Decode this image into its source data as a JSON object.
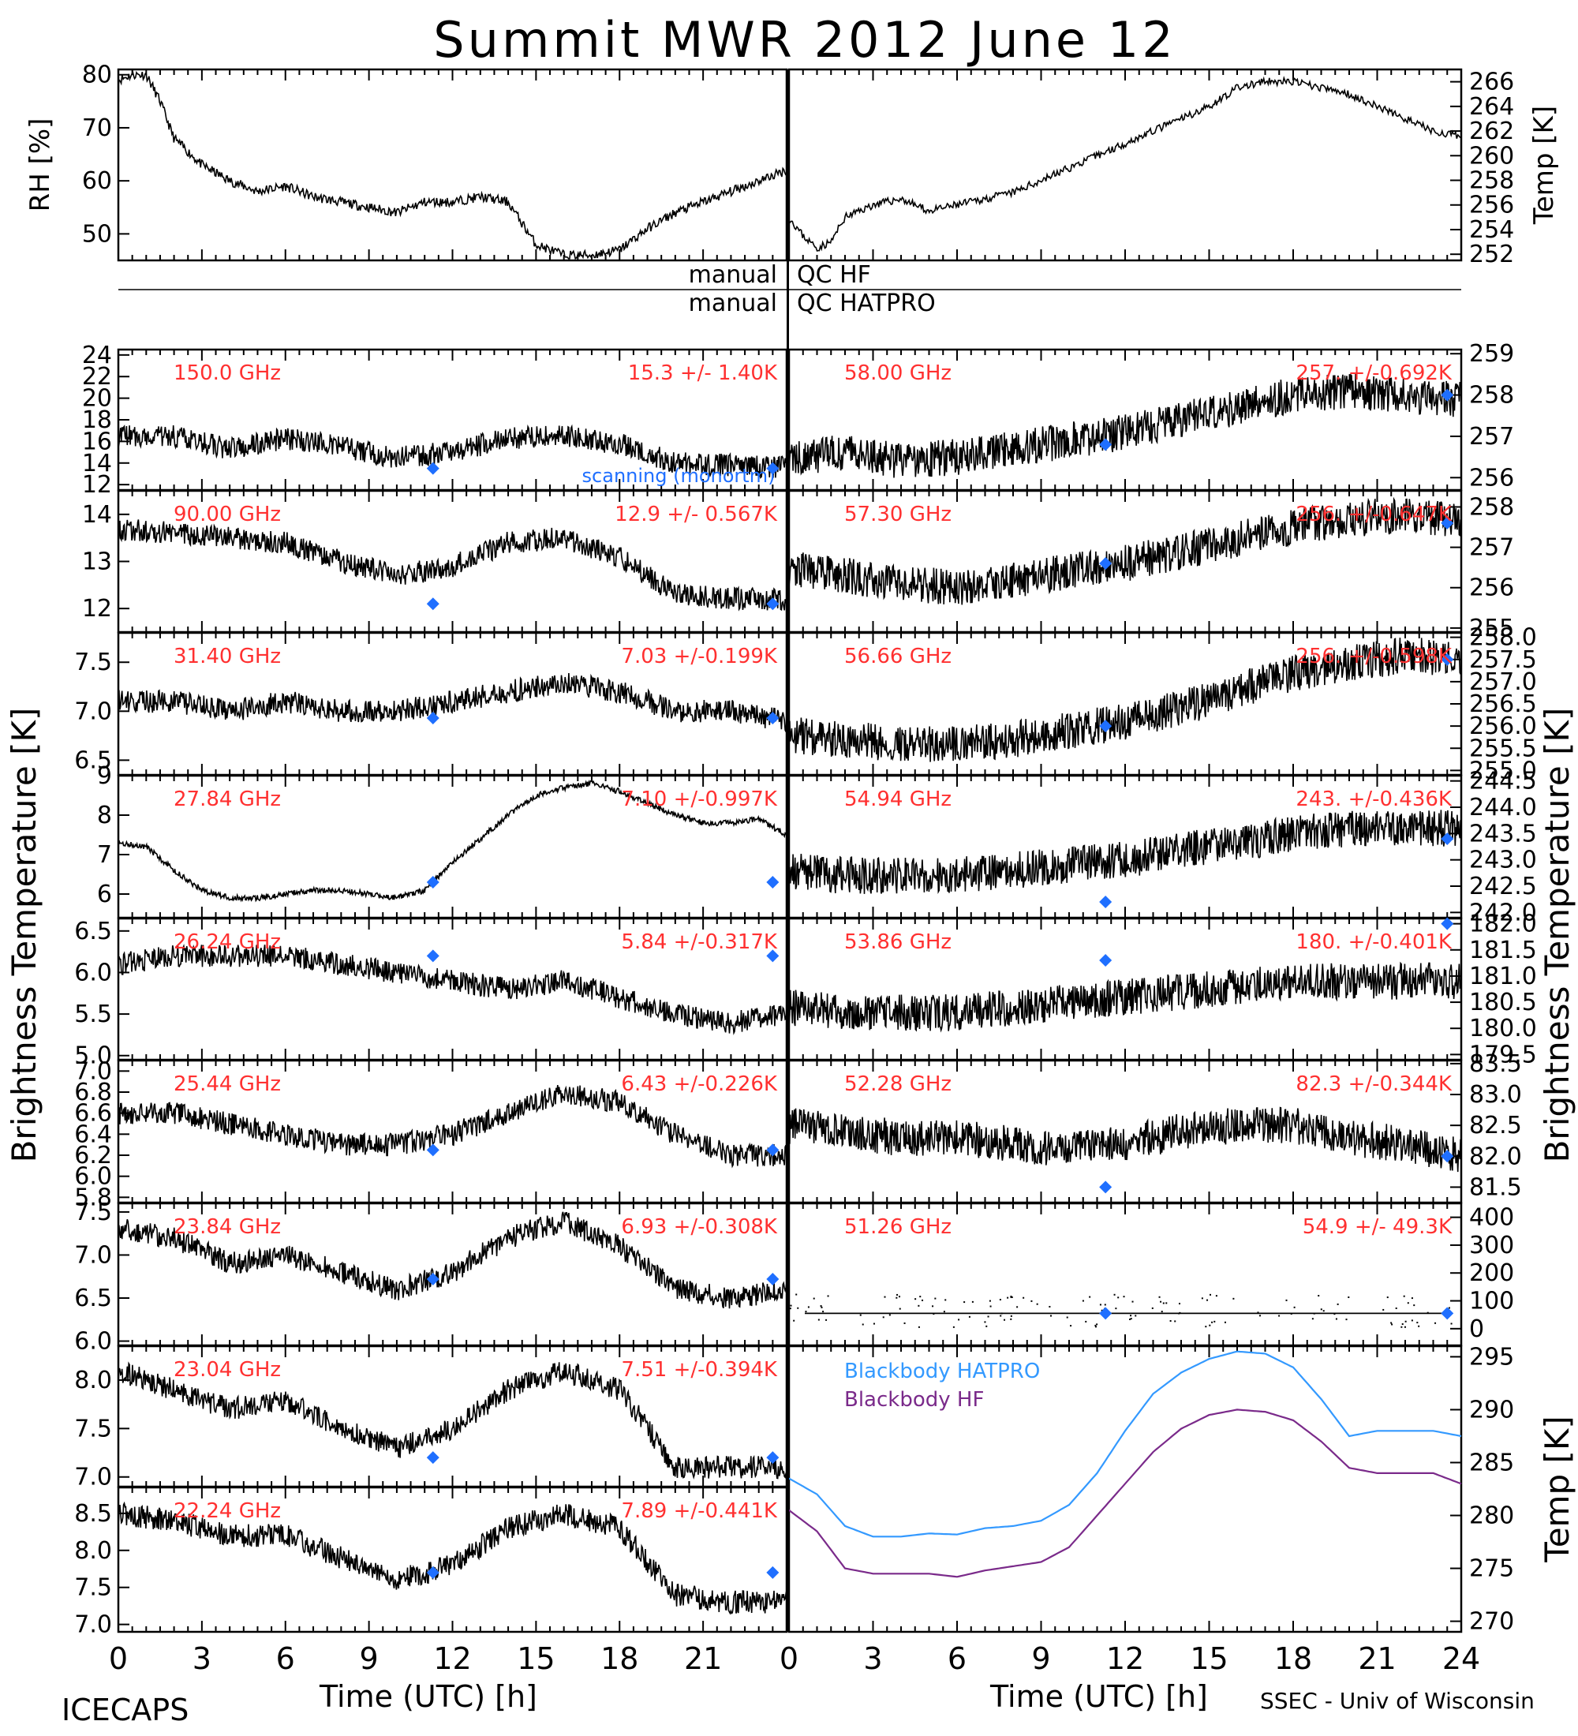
{
  "title": "Summit MWR 2012 June 12",
  "footer": {
    "left": "ICECAPS",
    "right": "SSEC - Univ of Wisconsin",
    "xlabel": "Time (UTC) [h]"
  },
  "qc_labels": {
    "manual": "manual",
    "hf": "QC HF",
    "hatpro": "QC HATPRO"
  },
  "left_axis_label": "Brightness Temperature [K]",
  "right_axis_label": "Brightness Temperature [K]",
  "x_ticks_left": [
    "0",
    "3",
    "6",
    "9",
    "12",
    "15",
    "18",
    "21"
  ],
  "x_ticks_right": [
    "0",
    "3",
    "6",
    "9",
    "12",
    "15",
    "18",
    "21",
    "24"
  ],
  "colors": {
    "trace": "#000000",
    "marker": "#1f6fff",
    "label": "#ff3030",
    "hatpro": "#3399ff",
    "hf": "#7a2a8a"
  },
  "chart_data": [
    {
      "type": "scatter",
      "panel": "rh",
      "ylabel": "RH [%]",
      "yticks": [
        "50",
        "60",
        "70",
        "80"
      ],
      "ylim": [
        45,
        81
      ],
      "x": [
        0,
        0.5,
        1,
        1.5,
        2,
        3,
        4,
        5,
        6,
        7,
        8,
        9,
        10,
        11,
        12,
        13,
        14,
        15,
        16,
        17,
        18,
        19,
        20,
        21,
        22,
        23,
        24
      ],
      "values": [
        79,
        80,
        80,
        75,
        68,
        63,
        60,
        58,
        59,
        57,
        56,
        55,
        54,
        56,
        56,
        57,
        56,
        48,
        46,
        46,
        47,
        51,
        54,
        56,
        58,
        60,
        62
      ]
    },
    {
      "type": "line",
      "panel": "temp",
      "ylabel": "Temp [K]",
      "yticks": [
        "252",
        "254",
        "256",
        "258",
        "260",
        "262",
        "264",
        "266"
      ],
      "ylim": [
        251.5,
        267
      ],
      "x": [
        0,
        0.5,
        1,
        1.5,
        2,
        3,
        4,
        5,
        6,
        7,
        8,
        9,
        10,
        11,
        12,
        13,
        14,
        15,
        16,
        17,
        18,
        19,
        20,
        21,
        22,
        23,
        24
      ],
      "values": [
        255,
        253.5,
        252.5,
        253,
        255,
        256,
        256.5,
        255.5,
        256,
        256.5,
        257,
        258,
        259,
        260,
        261,
        262,
        263,
        264,
        265.5,
        266,
        266,
        265.5,
        265,
        264,
        263,
        262,
        261.5
      ]
    },
    {
      "type": "scatter",
      "panel": "left-1",
      "freq": "150.0 GHz",
      "stat": "15.3 +/- 1.40K",
      "overlay": "scanning (monortm)",
      "yticks": [
        "12",
        "14",
        "16",
        "18",
        "20",
        "22",
        "24"
      ],
      "ylim": [
        11.5,
        24.5
      ],
      "x": [
        0,
        2,
        4,
        6,
        8,
        10,
        12,
        14,
        16,
        18,
        20,
        22,
        24
      ],
      "values": [
        16.5,
        16.5,
        15.3,
        16.3,
        15.5,
        14.5,
        15.0,
        16.3,
        16.5,
        15.8,
        14.0,
        13.8,
        13.6
      ],
      "markers": [
        [
          11.3,
          13.5
        ],
        [
          23.5,
          13.5
        ]
      ]
    },
    {
      "type": "scatter",
      "panel": "left-2",
      "freq": "90.00 GHz",
      "stat": "12.9 +/- 0.567K",
      "yticks": [
        "12",
        "13",
        "14"
      ],
      "ylim": [
        11.5,
        14.5
      ],
      "x": [
        0,
        2,
        4,
        6,
        8,
        10,
        12,
        14,
        16,
        18,
        20,
        22,
        24
      ],
      "values": [
        13.7,
        13.6,
        13.5,
        13.4,
        13.0,
        12.7,
        12.9,
        13.4,
        13.5,
        13.1,
        12.3,
        12.2,
        12.2
      ],
      "markers": [
        [
          11.3,
          12.1
        ],
        [
          23.5,
          12.1
        ]
      ]
    },
    {
      "type": "scatter",
      "panel": "left-3",
      "freq": "31.40 GHz",
      "stat": "7.03 +/-0.199K",
      "yticks": [
        "6.5",
        "7.0",
        "7.5"
      ],
      "ylim": [
        6.35,
        7.8
      ],
      "x": [
        0,
        2,
        4,
        6,
        8,
        10,
        12,
        14,
        16,
        18,
        20,
        22,
        24
      ],
      "values": [
        7.1,
        7.1,
        7.0,
        7.1,
        7.0,
        7.0,
        7.1,
        7.2,
        7.3,
        7.2,
        7.0,
        7.0,
        6.9
      ],
      "markers": [
        [
          11.3,
          6.93
        ],
        [
          23.5,
          6.93
        ]
      ]
    },
    {
      "type": "scatter",
      "panel": "left-4",
      "freq": "27.84 GHz",
      "stat": "7.10 +/-0.997K",
      "yticks": [
        "6",
        "7",
        "8",
        "9"
      ],
      "ylim": [
        5.4,
        9.0
      ],
      "x": [
        0,
        1,
        2,
        3,
        4,
        5,
        6,
        7,
        8,
        9,
        10,
        11,
        12,
        13,
        14,
        15,
        16,
        17,
        18,
        19,
        20,
        21,
        22,
        23,
        24
      ],
      "values": [
        7.3,
        7.2,
        6.6,
        6.1,
        5.9,
        5.9,
        6.0,
        6.1,
        6.1,
        6.0,
        5.9,
        6.1,
        6.8,
        7.4,
        8.0,
        8.5,
        8.7,
        8.8,
        8.6,
        8.3,
        8.0,
        7.8,
        7.8,
        7.9,
        7.5
      ],
      "markers": [
        [
          11.3,
          6.3
        ],
        [
          23.5,
          6.3
        ]
      ]
    },
    {
      "type": "scatter",
      "panel": "left-5",
      "freq": "26.24 GHz",
      "stat": "5.84 +/-0.317K",
      "yticks": [
        "5.0",
        "5.5",
        "6.0",
        "6.5"
      ],
      "ylim": [
        4.95,
        6.65
      ],
      "x": [
        0,
        2,
        4,
        6,
        8,
        10,
        12,
        14,
        16,
        18,
        20,
        22,
        24
      ],
      "values": [
        6.1,
        6.2,
        6.2,
        6.2,
        6.1,
        6.0,
        5.9,
        5.8,
        5.9,
        5.7,
        5.5,
        5.4,
        5.5
      ],
      "markers": [
        [
          11.3,
          6.2
        ],
        [
          23.5,
          6.2
        ]
      ]
    },
    {
      "type": "scatter",
      "panel": "left-6",
      "freq": "25.44 GHz",
      "stat": "6.43 +/-0.226K",
      "yticks": [
        "5.8",
        "6.0",
        "6.2",
        "6.4",
        "6.6",
        "6.8",
        "7.0"
      ],
      "ylim": [
        5.75,
        7.1
      ],
      "x": [
        0,
        2,
        4,
        6,
        8,
        10,
        12,
        14,
        16,
        18,
        20,
        22,
        24
      ],
      "values": [
        6.6,
        6.6,
        6.5,
        6.4,
        6.3,
        6.3,
        6.4,
        6.6,
        6.8,
        6.7,
        6.4,
        6.2,
        6.2
      ],
      "markers": [
        [
          11.3,
          6.25
        ],
        [
          23.5,
          6.25
        ]
      ]
    },
    {
      "type": "scatter",
      "panel": "left-7",
      "freq": "23.84 GHz",
      "stat": "6.93 +/-0.308K",
      "yticks": [
        "6.0",
        "6.5",
        "7.0",
        "7.5"
      ],
      "ylim": [
        5.95,
        7.6
      ],
      "x": [
        0,
        2,
        4,
        6,
        8,
        10,
        12,
        14,
        16,
        18,
        20,
        22,
        24
      ],
      "values": [
        7.3,
        7.2,
        6.9,
        7.0,
        6.8,
        6.6,
        6.8,
        7.2,
        7.4,
        7.1,
        6.6,
        6.5,
        6.6
      ],
      "markers": [
        [
          11.3,
          6.72
        ],
        [
          23.5,
          6.72
        ]
      ]
    },
    {
      "type": "scatter",
      "panel": "left-8",
      "freq": "23.04 GHz",
      "stat": "7.51 +/-0.394K",
      "yticks": [
        "7.0",
        "7.5",
        "8.0"
      ],
      "ylim": [
        6.9,
        8.35
      ],
      "x": [
        0,
        2,
        4,
        6,
        8,
        10,
        12,
        14,
        16,
        18,
        20,
        22,
        24
      ],
      "values": [
        8.1,
        7.9,
        7.7,
        7.8,
        7.5,
        7.3,
        7.5,
        7.9,
        8.1,
        7.9,
        7.1,
        7.1,
        7.1
      ],
      "markers": [
        [
          11.3,
          7.2
        ],
        [
          23.5,
          7.2
        ]
      ]
    },
    {
      "type": "scatter",
      "panel": "left-9",
      "freq": "22.24 GHz",
      "stat": "7.89 +/-0.441K",
      "yticks": [
        "7.0",
        "7.5",
        "8.0",
        "8.5"
      ],
      "ylim": [
        6.9,
        8.85
      ],
      "x": [
        0,
        2,
        4,
        6,
        8,
        10,
        12,
        14,
        16,
        18,
        20,
        22,
        24
      ],
      "values": [
        8.5,
        8.4,
        8.2,
        8.2,
        7.9,
        7.6,
        7.8,
        8.3,
        8.5,
        8.3,
        7.4,
        7.3,
        7.3
      ],
      "markers": [
        [
          11.3,
          7.7
        ],
        [
          23.5,
          7.7
        ]
      ]
    },
    {
      "type": "scatter",
      "panel": "right-1",
      "freq": "58.00 GHz",
      "stat": "257. +/-0.692K",
      "yticks": [
        "256",
        "257",
        "258",
        "259"
      ],
      "ylim": [
        255.7,
        259.1
      ],
      "x": [
        0,
        2,
        4,
        6,
        8,
        10,
        12,
        14,
        16,
        18,
        20,
        22,
        24
      ],
      "values": [
        256.5,
        256.6,
        256.4,
        256.5,
        256.7,
        256.9,
        257.1,
        257.4,
        257.7,
        258.0,
        258.1,
        258.0,
        257.9
      ],
      "markers": [
        [
          11.3,
          256.8
        ],
        [
          23.5,
          258.0
        ]
      ]
    },
    {
      "type": "scatter",
      "panel": "right-2",
      "freq": "57.30 GHz",
      "stat": "256. +/-0.647K",
      "yticks": [
        "255",
        "256",
        "257",
        "258"
      ],
      "ylim": [
        254.9,
        258.4
      ],
      "x": [
        0,
        2,
        4,
        6,
        8,
        10,
        12,
        14,
        16,
        18,
        20,
        22,
        24
      ],
      "values": [
        256.5,
        256.3,
        256.1,
        256.0,
        256.2,
        256.4,
        256.6,
        256.9,
        257.2,
        257.5,
        257.7,
        257.8,
        257.7
      ],
      "markers": [
        [
          11.3,
          256.6
        ],
        [
          23.5,
          257.6
        ]
      ]
    },
    {
      "type": "scatter",
      "panel": "right-3",
      "freq": "56.66 GHz",
      "stat": "256. +/-0.598K",
      "yticks": [
        "255.0",
        "255.5",
        "256.0",
        "256.5",
        "257.0",
        "257.5",
        "258.0"
      ],
      "ylim": [
        254.9,
        258.1
      ],
      "x": [
        0,
        2,
        4,
        6,
        8,
        10,
        12,
        14,
        16,
        18,
        20,
        22,
        24
      ],
      "values": [
        255.8,
        255.7,
        255.6,
        255.6,
        255.7,
        255.9,
        256.1,
        256.4,
        256.8,
        257.2,
        257.4,
        257.6,
        257.5
      ],
      "markers": [
        [
          11.3,
          256.0
        ],
        [
          23.5,
          257.5
        ]
      ]
    },
    {
      "type": "scatter",
      "panel": "right-4",
      "freq": "54.94 GHz",
      "stat": "243. +/-0.436K",
      "yticks": [
        "242.0",
        "242.5",
        "243.0",
        "243.5",
        "244.0",
        "244.5"
      ],
      "ylim": [
        241.9,
        244.6
      ],
      "x": [
        0,
        2,
        4,
        6,
        8,
        10,
        12,
        14,
        16,
        18,
        20,
        22,
        24
      ],
      "values": [
        242.8,
        242.7,
        242.7,
        242.7,
        242.8,
        242.9,
        243.0,
        243.2,
        243.3,
        243.5,
        243.6,
        243.6,
        243.6
      ],
      "markers": [
        [
          11.3,
          242.2
        ],
        [
          23.5,
          243.4
        ]
      ]
    },
    {
      "type": "scatter",
      "panel": "right-5",
      "freq": "53.86 GHz",
      "stat": "180. +/-0.401K",
      "yticks": [
        "179.5",
        "180.0",
        "180.5",
        "181.0",
        "181.5",
        "182.0"
      ],
      "ylim": [
        179.4,
        182.1
      ],
      "x": [
        0,
        2,
        4,
        6,
        8,
        10,
        12,
        14,
        16,
        18,
        20,
        22,
        24
      ],
      "values": [
        180.4,
        180.3,
        180.3,
        180.3,
        180.4,
        180.5,
        180.6,
        180.7,
        180.8,
        180.9,
        180.9,
        180.9,
        180.9
      ],
      "markers": [
        [
          11.3,
          181.3
        ],
        [
          23.5,
          182.0
        ]
      ]
    },
    {
      "type": "scatter",
      "panel": "right-6",
      "freq": "52.28 GHz",
      "stat": "82.3 +/-0.344K",
      "yticks": [
        "81.5",
        "82.0",
        "82.5",
        "83.0",
        "83.5"
      ],
      "ylim": [
        81.25,
        83.55
      ],
      "x": [
        0,
        2,
        4,
        6,
        8,
        10,
        12,
        14,
        16,
        18,
        20,
        22,
        24
      ],
      "values": [
        82.5,
        82.4,
        82.3,
        82.3,
        82.2,
        82.1,
        82.2,
        82.4,
        82.5,
        82.5,
        82.3,
        82.2,
        82.0
      ],
      "markers": [
        [
          11.3,
          81.5
        ],
        [
          23.5,
          82.0
        ]
      ]
    },
    {
      "type": "scatter",
      "panel": "right-7",
      "freq": "51.26 GHz",
      "stat": "54.9 +/- 49.3K",
      "yticks": [
        "0",
        "100",
        "200",
        "300",
        "400"
      ],
      "ylim": [
        -60,
        450
      ],
      "x": [
        0,
        2,
        4,
        6,
        8,
        10,
        12,
        14,
        16,
        18,
        20,
        22,
        24
      ],
      "values": [
        55,
        55,
        55,
        55,
        55,
        55,
        55,
        55,
        55,
        55,
        55,
        55,
        55
      ],
      "markers": [
        [
          11.3,
          55
        ],
        [
          23.5,
          55
        ]
      ]
    },
    {
      "type": "line",
      "panel": "blackbody",
      "ylabel": "Temp [K]",
      "yticks": [
        "270",
        "275",
        "280",
        "285",
        "290",
        "295"
      ],
      "ylim": [
        269,
        296
      ],
      "x": [
        0,
        1,
        2,
        3,
        4,
        5,
        6,
        7,
        8,
        9,
        10,
        11,
        12,
        13,
        14,
        15,
        16,
        17,
        18,
        19,
        20,
        21,
        22,
        23,
        24
      ],
      "series": [
        {
          "name": "Blackbody HATPRO",
          "values": [
            283.5,
            282,
            279,
            278,
            278,
            278.3,
            278.2,
            278.8,
            279,
            279.5,
            281,
            284,
            288,
            291.5,
            293.5,
            294.8,
            295.5,
            295.3,
            294,
            291,
            287.5,
            288,
            288,
            288,
            287.5
          ]
        },
        {
          "name": "Blackbody HF",
          "values": [
            280.5,
            278.5,
            275,
            274.5,
            274.5,
            274.5,
            274.2,
            274.8,
            275.2,
            275.6,
            277,
            280,
            283,
            286,
            288.2,
            289.5,
            290,
            289.8,
            289,
            287,
            284.5,
            284,
            284,
            284,
            283
          ]
        }
      ]
    }
  ]
}
